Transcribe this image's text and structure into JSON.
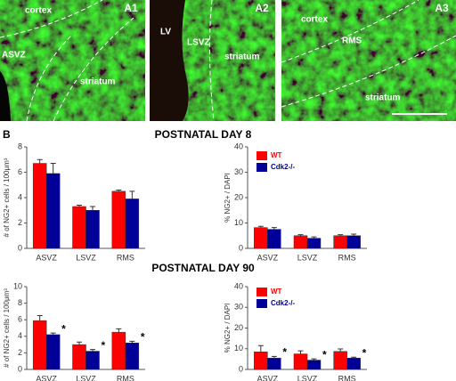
{
  "images": [
    {
      "label": "A1",
      "annotations": [
        "cortex",
        "ASVZ",
        "striatum"
      ]
    },
    {
      "label": "A2",
      "annotations": [
        "LV",
        "LSVZ",
        "striatum"
      ]
    },
    {
      "label": "A3",
      "annotations": [
        "cortex",
        "RMS",
        "striatum"
      ]
    }
  ],
  "panel_label": "B",
  "section_titles": [
    "POSTNATAL DAY 8",
    "POSTNATAL DAY 90"
  ],
  "chart_data": [
    {
      "type": "bar",
      "ylabel": "# of NG2+ cells / 100μm³",
      "categories": [
        "ASVZ",
        "LSVZ",
        "RMS"
      ],
      "ylim": [
        0,
        8
      ],
      "yticks": [
        0,
        2,
        4,
        6,
        8
      ],
      "series": [
        {
          "color": "#ff0000",
          "values": [
            6.7,
            3.3,
            4.5
          ],
          "errors": [
            0.3,
            0.1,
            0.1
          ]
        },
        {
          "color": "#000099",
          "values": [
            5.9,
            3.0,
            3.9
          ],
          "errors": [
            0.8,
            0.3,
            0.6
          ]
        }
      ]
    },
    {
      "type": "bar",
      "ylabel": "% NG2+ / DAPI",
      "categories": [
        "ASVZ",
        "LSVZ",
        "RMS"
      ],
      "ylim": [
        0,
        40
      ],
      "yticks": [
        0,
        10,
        20,
        30,
        40
      ],
      "legend": "top",
      "series": [
        {
          "name": "WT",
          "color": "#ff0000",
          "values": [
            8.2,
            5.0,
            5.0
          ],
          "errors": [
            0.5,
            0.4,
            0.4
          ]
        },
        {
          "name": "Cdk2-/-",
          "color": "#000099",
          "values": [
            7.5,
            4.0,
            5.0
          ],
          "errors": [
            0.7,
            0.5,
            0.6
          ]
        }
      ]
    },
    {
      "type": "bar",
      "ylabel": "# of NG2+ cells / 100μm³",
      "categories": [
        "ASVZ",
        "LSVZ",
        "RMS"
      ],
      "ylim": [
        0,
        10
      ],
      "yticks": [
        0,
        2,
        4,
        6,
        8,
        10
      ],
      "series": [
        {
          "color": "#ff0000",
          "values": [
            5.9,
            3.0,
            4.5
          ],
          "errors": [
            0.6,
            0.3,
            0.4
          ]
        },
        {
          "color": "#000099",
          "values": [
            4.2,
            2.2,
            3.2
          ],
          "errors": [
            0.2,
            0.2,
            0.2
          ],
          "markers": [
            "*",
            "*",
            "*"
          ]
        }
      ]
    },
    {
      "type": "bar",
      "ylabel": "% NG2+ / DAPI",
      "categories": [
        "ASVZ",
        "LSVZ",
        "RMS"
      ],
      "ylim": [
        0,
        40
      ],
      "yticks": [
        0,
        10,
        20,
        30,
        40
      ],
      "legend": "top",
      "series": [
        {
          "name": "WT",
          "color": "#ff0000",
          "values": [
            8.5,
            7.5,
            8.7
          ],
          "errors": [
            3.0,
            1.5,
            1.2
          ]
        },
        {
          "name": "Cdk2-/-",
          "color": "#000099",
          "values": [
            5.5,
            4.5,
            5.5
          ],
          "errors": [
            0.8,
            0.6,
            0.4
          ],
          "markers": [
            "*",
            "*",
            "*"
          ]
        }
      ]
    }
  ]
}
